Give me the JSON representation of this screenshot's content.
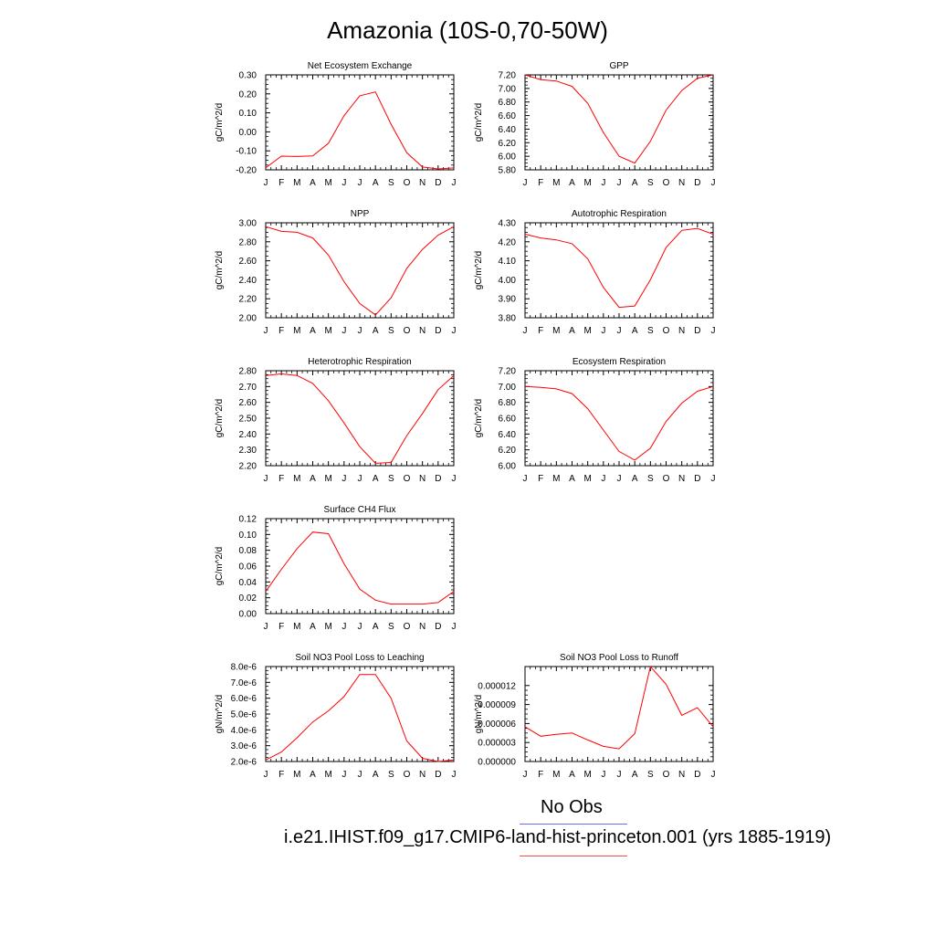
{
  "title": "Amazonia (10S-0,70-50W)",
  "legend": {
    "items": [
      {
        "label": "No Obs",
        "color": "#6b6bff"
      },
      {
        "label": "i.e21.IHIST.f09_g17.CMIP6-land-hist-princeton.001 (yrs 1885-1919)",
        "color": "#ff4d4d"
      }
    ]
  },
  "colors": {
    "series": "#ff0000",
    "axis": "#000000"
  },
  "chart_data": [
    {
      "type": "line",
      "title": "Net Ecosystem Exchange",
      "ylabel": "gC/m^2/d",
      "categories": [
        "J",
        "F",
        "M",
        "A",
        "M",
        "J",
        "J",
        "A",
        "S",
        "O",
        "N",
        "D",
        "J"
      ],
      "ylim": [
        -0.2,
        0.3
      ],
      "yticks": [
        "-0.20",
        "-0.10",
        "0.00",
        "0.10",
        "0.20",
        "0.30"
      ],
      "series": [
        {
          "values": [
            -0.19,
            -0.128,
            -0.13,
            -0.127,
            -0.06,
            0.085,
            0.19,
            0.21,
            0.04,
            -0.11,
            -0.185,
            -0.195,
            -0.19
          ]
        }
      ]
    },
    {
      "type": "line",
      "title": "GPP",
      "ylabel": "gC/m^2/d",
      "categories": [
        "J",
        "F",
        "M",
        "A",
        "M",
        "J",
        "J",
        "A",
        "S",
        "O",
        "N",
        "D",
        "J"
      ],
      "ylim": [
        5.8,
        7.2
      ],
      "yticks": [
        "5.80",
        "6.00",
        "6.20",
        "6.40",
        "6.60",
        "6.80",
        "7.00",
        "7.20"
      ],
      "series": [
        {
          "values": [
            7.2,
            7.13,
            7.11,
            7.03,
            6.78,
            6.35,
            6.0,
            5.9,
            6.22,
            6.68,
            6.97,
            7.15,
            7.2
          ]
        }
      ]
    },
    {
      "type": "line",
      "title": "NPP",
      "ylabel": "gC/m^2/d",
      "categories": [
        "J",
        "F",
        "M",
        "A",
        "M",
        "J",
        "J",
        "A",
        "S",
        "O",
        "N",
        "D",
        "J"
      ],
      "ylim": [
        2.0,
        3.0
      ],
      "yticks": [
        "2.00",
        "2.20",
        "2.40",
        "2.60",
        "2.80",
        "3.00"
      ],
      "series": [
        {
          "values": [
            2.96,
            2.91,
            2.9,
            2.84,
            2.66,
            2.38,
            2.15,
            2.03,
            2.21,
            2.52,
            2.72,
            2.87,
            2.96
          ]
        }
      ]
    },
    {
      "type": "line",
      "title": "Autotrophic Respiration",
      "ylabel": "gC/m^2/d",
      "categories": [
        "J",
        "F",
        "M",
        "A",
        "M",
        "J",
        "J",
        "A",
        "S",
        "O",
        "N",
        "D",
        "J"
      ],
      "ylim": [
        3.8,
        4.3
      ],
      "yticks": [
        "3.80",
        "3.90",
        "4.00",
        "4.10",
        "4.20",
        "4.30"
      ],
      "series": [
        {
          "values": [
            4.24,
            4.22,
            4.21,
            4.19,
            4.11,
            3.96,
            3.855,
            3.862,
            4.0,
            4.17,
            4.26,
            4.27,
            4.24
          ]
        }
      ]
    },
    {
      "type": "line",
      "title": "Heterotrophic Respiration",
      "ylabel": "gC/m^2/d",
      "categories": [
        "J",
        "F",
        "M",
        "A",
        "M",
        "J",
        "J",
        "A",
        "S",
        "O",
        "N",
        "D",
        "J"
      ],
      "ylim": [
        2.2,
        2.8
      ],
      "yticks": [
        "2.20",
        "2.30",
        "2.40",
        "2.50",
        "2.60",
        "2.70",
        "2.80"
      ],
      "series": [
        {
          "values": [
            2.77,
            2.78,
            2.77,
            2.72,
            2.61,
            2.47,
            2.32,
            2.215,
            2.22,
            2.39,
            2.53,
            2.68,
            2.77
          ]
        }
      ]
    },
    {
      "type": "line",
      "title": "Ecosystem Respiration",
      "ylabel": "gC/m^2/d",
      "categories": [
        "J",
        "F",
        "M",
        "A",
        "M",
        "J",
        "J",
        "A",
        "S",
        "O",
        "N",
        "D",
        "J"
      ],
      "ylim": [
        6.0,
        7.2
      ],
      "yticks": [
        "6.00",
        "6.20",
        "6.40",
        "6.60",
        "6.80",
        "7.00",
        "7.20"
      ],
      "series": [
        {
          "values": [
            7.0,
            6.99,
            6.97,
            6.91,
            6.72,
            6.45,
            6.18,
            6.07,
            6.22,
            6.56,
            6.79,
            6.94,
            7.0
          ]
        }
      ]
    },
    {
      "type": "line",
      "title": "Surface CH4 Flux",
      "ylabel": "gC/m^2/d",
      "categories": [
        "J",
        "F",
        "M",
        "A",
        "M",
        "J",
        "J",
        "A",
        "S",
        "O",
        "N",
        "D",
        "J"
      ],
      "ylim": [
        0.0,
        0.12
      ],
      "yticks": [
        "0.00",
        "0.02",
        "0.04",
        "0.06",
        "0.08",
        "0.10",
        "0.12"
      ],
      "series": [
        {
          "values": [
            0.028,
            0.056,
            0.082,
            0.103,
            0.101,
            0.063,
            0.031,
            0.017,
            0.012,
            0.012,
            0.012,
            0.014,
            0.028
          ]
        }
      ]
    },
    {
      "type": "line",
      "title": "Soil NO3 Pool Loss to Leaching",
      "ylabel": "gN/m^2/d",
      "categories": [
        "J",
        "F",
        "M",
        "A",
        "M",
        "J",
        "J",
        "A",
        "S",
        "O",
        "N",
        "D",
        "J"
      ],
      "ylim": [
        2e-06,
        8e-06
      ],
      "yticks": [
        "2.0e-6",
        "3.0e-6",
        "4.0e-6",
        "5.0e-6",
        "6.0e-6",
        "7.0e-6",
        "8.0e-6"
      ],
      "series": [
        {
          "values": [
            2.1e-06,
            2.6e-06,
            3.5e-06,
            4.5e-06,
            5.2e-06,
            6.1e-06,
            7.5e-06,
            7.5e-06,
            6e-06,
            3.3e-06,
            2.2e-06,
            2e-06,
            2.1e-06
          ]
        }
      ]
    },
    {
      "type": "line",
      "title": "Soil NO3 Pool Loss to Runoff",
      "ylabel": "gN/m^2/d",
      "categories": [
        "J",
        "F",
        "M",
        "A",
        "M",
        "J",
        "J",
        "A",
        "S",
        "O",
        "N",
        "D",
        "J"
      ],
      "ylim": [
        0.0,
        1.5e-05
      ],
      "yticks": [
        "0.000000",
        "0.000003",
        "0.000006",
        "0.000009",
        "0.000012"
      ],
      "ytick_values": [
        0.0,
        3e-06,
        6e-06,
        9e-06,
        1.2e-05
      ],
      "series": [
        {
          "values": [
            5.5e-06,
            4e-06,
            4.3e-06,
            4.5e-06,
            3.4e-06,
            2.4e-06,
            2e-06,
            4.4e-06,
            1.5e-05,
            1.22e-05,
            7.3e-06,
            8.5e-06,
            5.5e-06
          ]
        }
      ]
    }
  ]
}
